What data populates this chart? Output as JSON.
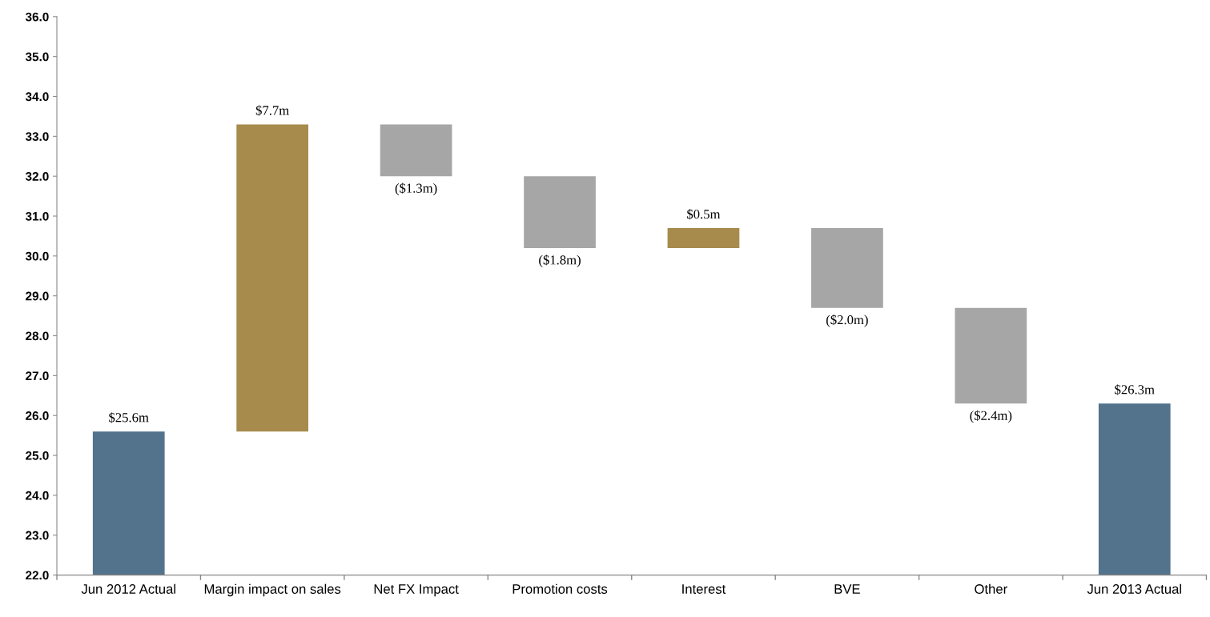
{
  "chart_data": {
    "type": "bar",
    "categories": [
      "Jun 2012 Actual",
      "Margin impact on sales",
      "Net FX Impact",
      "Promotion costs",
      "Interest",
      "BVE",
      "Other",
      "Jun 2013 Actual"
    ],
    "base": [
      22.0,
      25.6,
      33.3,
      32.0,
      30.2,
      30.7,
      28.7,
      22.0
    ],
    "values": [
      3.6,
      7.7,
      -1.3,
      -1.8,
      0.5,
      -2.0,
      -2.4,
      4.3
    ],
    "colors": [
      "#53738c",
      "#a68b4c",
      "#a6a6a6",
      "#a6a6a6",
      "#a68b4c",
      "#a6a6a6",
      "#a6a6a6",
      "#53738c"
    ],
    "value_labels": [
      "$25.6m",
      "$7.7m",
      "($1.3m)",
      "($1.8m)",
      "$0.5m",
      "($2.0m)",
      "($2.4m)",
      "$26.3m"
    ],
    "ylim": [
      22.0,
      36.0
    ],
    "yticks": [
      {
        "value": 22,
        "label": "22.0"
      },
      {
        "value": 23,
        "label": "23.0"
      },
      {
        "value": 24,
        "label": "24.0"
      },
      {
        "value": 25,
        "label": "25.0"
      },
      {
        "value": 26,
        "label": "26.0"
      },
      {
        "value": 27,
        "label": "27.0"
      },
      {
        "value": 28,
        "label": "28.0"
      },
      {
        "value": 29,
        "label": "29.0"
      },
      {
        "value": 30,
        "label": "30.0"
      },
      {
        "value": 31,
        "label": "31.0"
      },
      {
        "value": 32,
        "label": "32.0"
      },
      {
        "value": 33,
        "label": "33.0"
      },
      {
        "value": 34,
        "label": "34.0"
      },
      {
        "value": 35,
        "label": "35.0"
      },
      {
        "value": 36,
        "label": "36.0"
      }
    ],
    "grid": false,
    "legend": false
  }
}
